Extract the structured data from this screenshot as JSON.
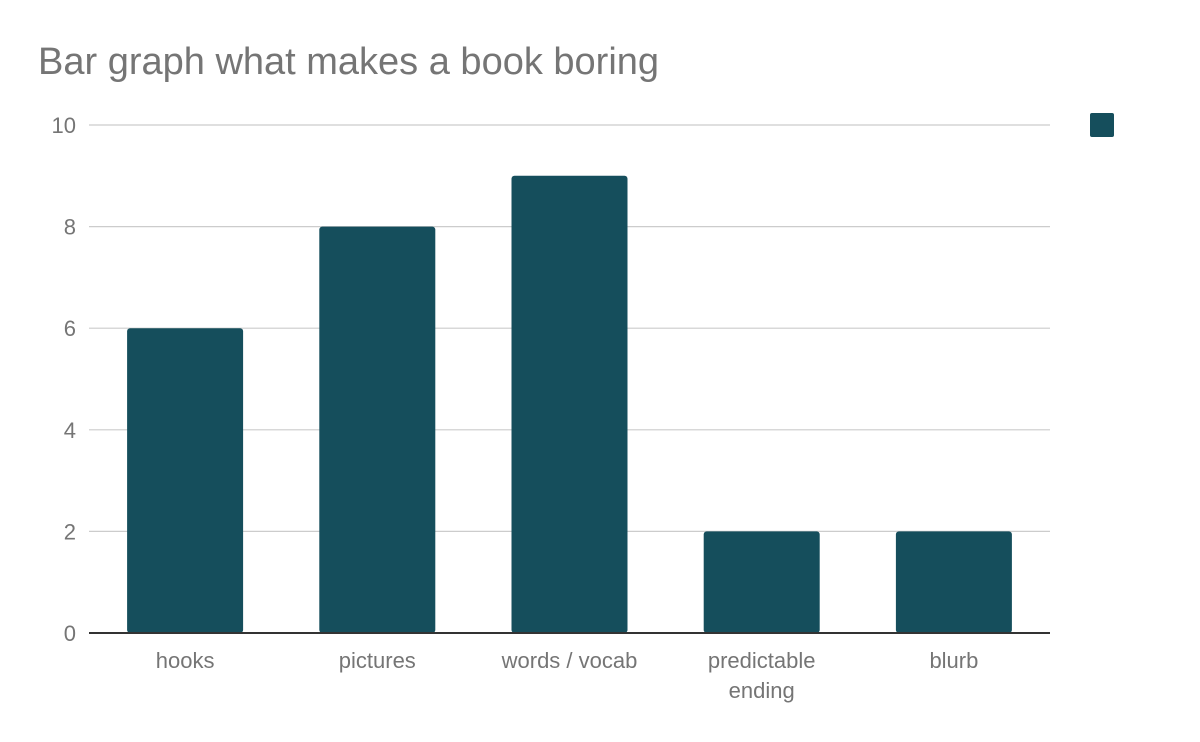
{
  "chart_data": {
    "type": "bar",
    "title": "Bar graph what makes a book boring",
    "categories": [
      "hooks",
      "pictures",
      "words / vocab",
      "predictable ending",
      "blurb"
    ],
    "category_label_lines": [
      [
        "hooks"
      ],
      [
        "pictures"
      ],
      [
        "words / vocab"
      ],
      [
        "predictable",
        "ending"
      ],
      [
        "blurb"
      ]
    ],
    "values": [
      6,
      8,
      9,
      2,
      2
    ],
    "xlabel": "",
    "ylabel": "",
    "ylim": [
      0,
      10
    ],
    "yticks": [
      "0",
      "2",
      "4",
      "6",
      "8",
      "10"
    ],
    "grid": true,
    "legend_position": "right",
    "colors": {
      "bar": "#154e5c",
      "legend_swatch": "#154e5c"
    }
  }
}
